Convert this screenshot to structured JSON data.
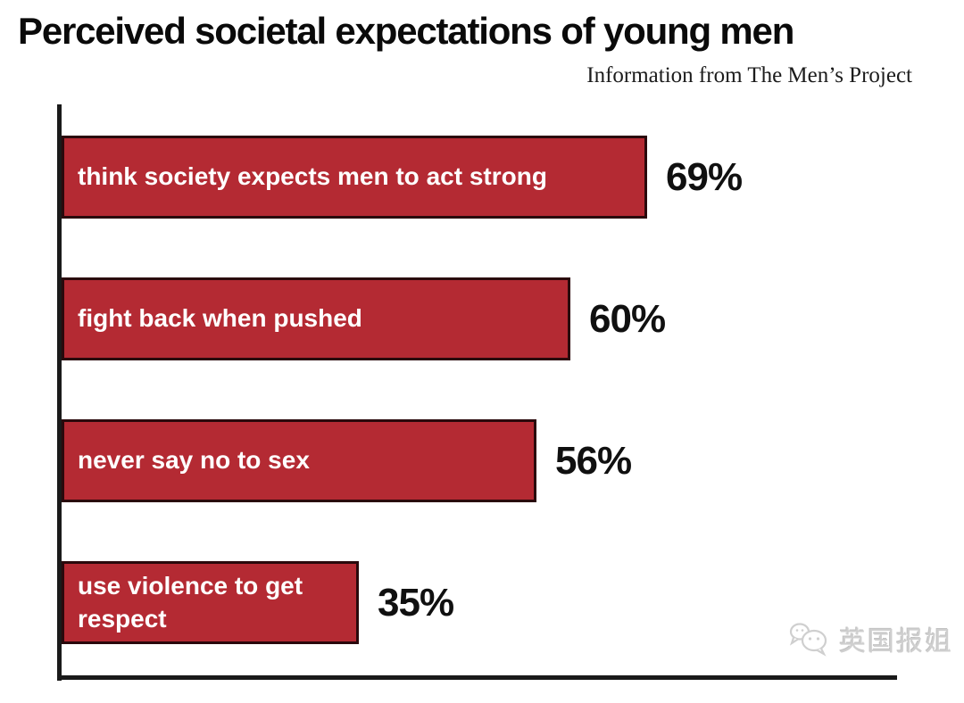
{
  "title": "Perceived societal expectations of young men",
  "subtitle": "Information from The Men’s Project",
  "watermark": {
    "text": "英国报姐",
    "icon": "wechat-chat-bubbles-icon"
  },
  "colors": {
    "background": "#FFFFFF",
    "bar_fill": "#B42A33",
    "bar_border": "#2A090C",
    "axis": "#1A1A1A",
    "bar_label": "#FFFFFF",
    "value_label": "#101010",
    "title": "#0A0A0A",
    "watermark": "#CFCFCF"
  },
  "chart_data": {
    "type": "bar",
    "orientation": "horizontal",
    "title": "Perceived societal expectations of young men",
    "subtitle": "Information from The Men’s Project",
    "categories": [
      "think society expects men to act strong",
      "fight back when pushed",
      "never say no to sex",
      "use violence to get respect"
    ],
    "values": [
      69,
      60,
      56,
      35
    ],
    "value_labels": [
      "69%",
      "60%",
      "56%",
      "35%"
    ],
    "xlabel": "",
    "ylabel": "",
    "xlim": [
      0,
      100
    ],
    "grid": false,
    "legend": false,
    "bar_label_position": "inside-left",
    "value_label_position": "outside-right"
  }
}
